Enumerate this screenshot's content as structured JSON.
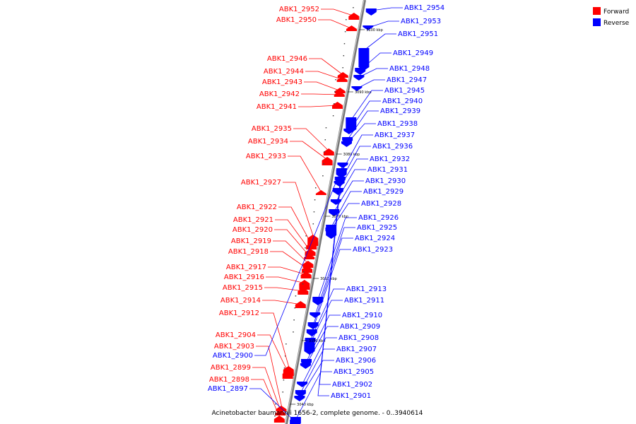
{
  "caption": "Acinetobacter baumannii 1656-2, complete genome. - 0..3940614",
  "legend": [
    {
      "label": "Forward",
      "color": "#ff0000"
    },
    {
      "label": "Reverse",
      "color": "#0000ff"
    }
  ],
  "ticks": [
    "3100 kbp",
    "3090 kbp",
    "3080 kbp",
    "3070 kbp",
    "3060 kbp",
    "3050 kbp",
    "3040 kbp"
  ],
  "forward_genes": [
    "ABK1_2952",
    "ABK1_2950",
    "ABK1_2946",
    "ABK1_2944",
    "ABK1_2943",
    "ABK1_2942",
    "ABK1_2941",
    "ABK1_2935",
    "ABK1_2934",
    "ABK1_2933",
    "ABK1_2927",
    "ABK1_2922",
    "ABK1_2921",
    "ABK1_2920",
    "ABK1_2919",
    "ABK1_2918",
    "ABK1_2917",
    "ABK1_2916",
    "ABK1_2915",
    "ABK1_2914",
    "ABK1_2912",
    "ABK1_2904",
    "ABK1_2903",
    "ABK1_2899",
    "ABK1_2898"
  ],
  "reverse_genes": [
    "ABK1_2954",
    "ABK1_2953",
    "ABK1_2951",
    "ABK1_2949",
    "ABK1_2948",
    "ABK1_2947",
    "ABK1_2945",
    "ABK1_2940",
    "ABK1_2939",
    "ABK1_2938",
    "ABK1_2937",
    "ABK1_2936",
    "ABK1_2932",
    "ABK1_2931",
    "ABK1_2930",
    "ABK1_2929",
    "ABK1_2928",
    "ABK1_2926",
    "ABK1_2925",
    "ABK1_2924",
    "ABK1_2923",
    "ABK1_2913",
    "ABK1_2911",
    "ABK1_2910",
    "ABK1_2909",
    "ABK1_2908",
    "ABK1_2907",
    "ABK1_2906",
    "ABK1_2905",
    "ABK1_2902",
    "ABK1_2901",
    "ABK1_2900",
    "ABK1_2897"
  ]
}
